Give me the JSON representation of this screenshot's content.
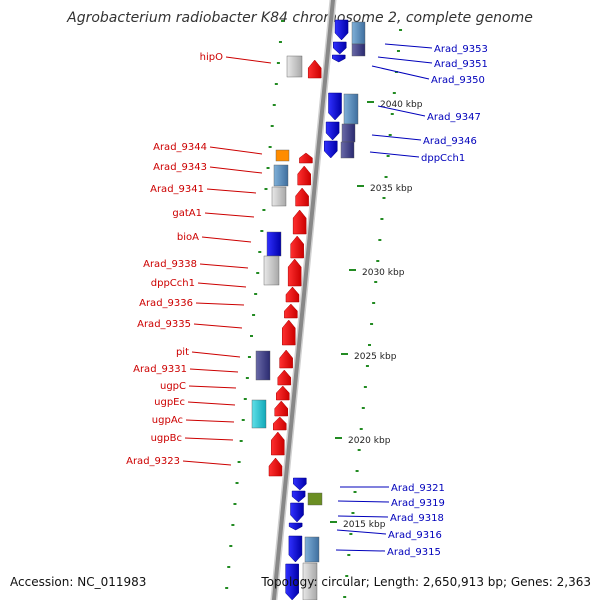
{
  "title": "Agrobacterium radiobacter K84 chromosome 2, complete genome",
  "footer": {
    "accession": "Accession: NC_011983",
    "summary": "Topology: circular; Length: 2,650,913 bp; Genes: 2,363"
  },
  "colors": {
    "forward_gene": "#ff0000",
    "reverse_gene": "#0000ee",
    "forward_label": "#cc0000",
    "reverse_label": "#0000bb",
    "ruler": "#228b22",
    "backbone": "#888888"
  },
  "scale_labels": [
    "2040 kbp",
    "2035 kbp",
    "2030 kbp",
    "2025 kbp",
    "2020 kbp",
    "2015 kbp"
  ],
  "left_labels": [
    "hipO",
    "Arad_9344",
    "Arad_9343",
    "Arad_9341",
    "gatA1",
    "bioA",
    "Arad_9338",
    "dppCch1",
    "Arad_9336",
    "Arad_9335",
    "pit",
    "Arad_9331",
    "ugpC",
    "ugpEc",
    "ugpAc",
    "ugpBc",
    "Arad_9323"
  ],
  "right_labels": [
    "Arad_9353",
    "Arad_9351",
    "Arad_9350",
    "Arad_9347",
    "Arad_9346",
    "dppCch1",
    "Arad_9321",
    "Arad_9319",
    "Arad_9318",
    "Arad_9316",
    "Arad_9315"
  ]
}
